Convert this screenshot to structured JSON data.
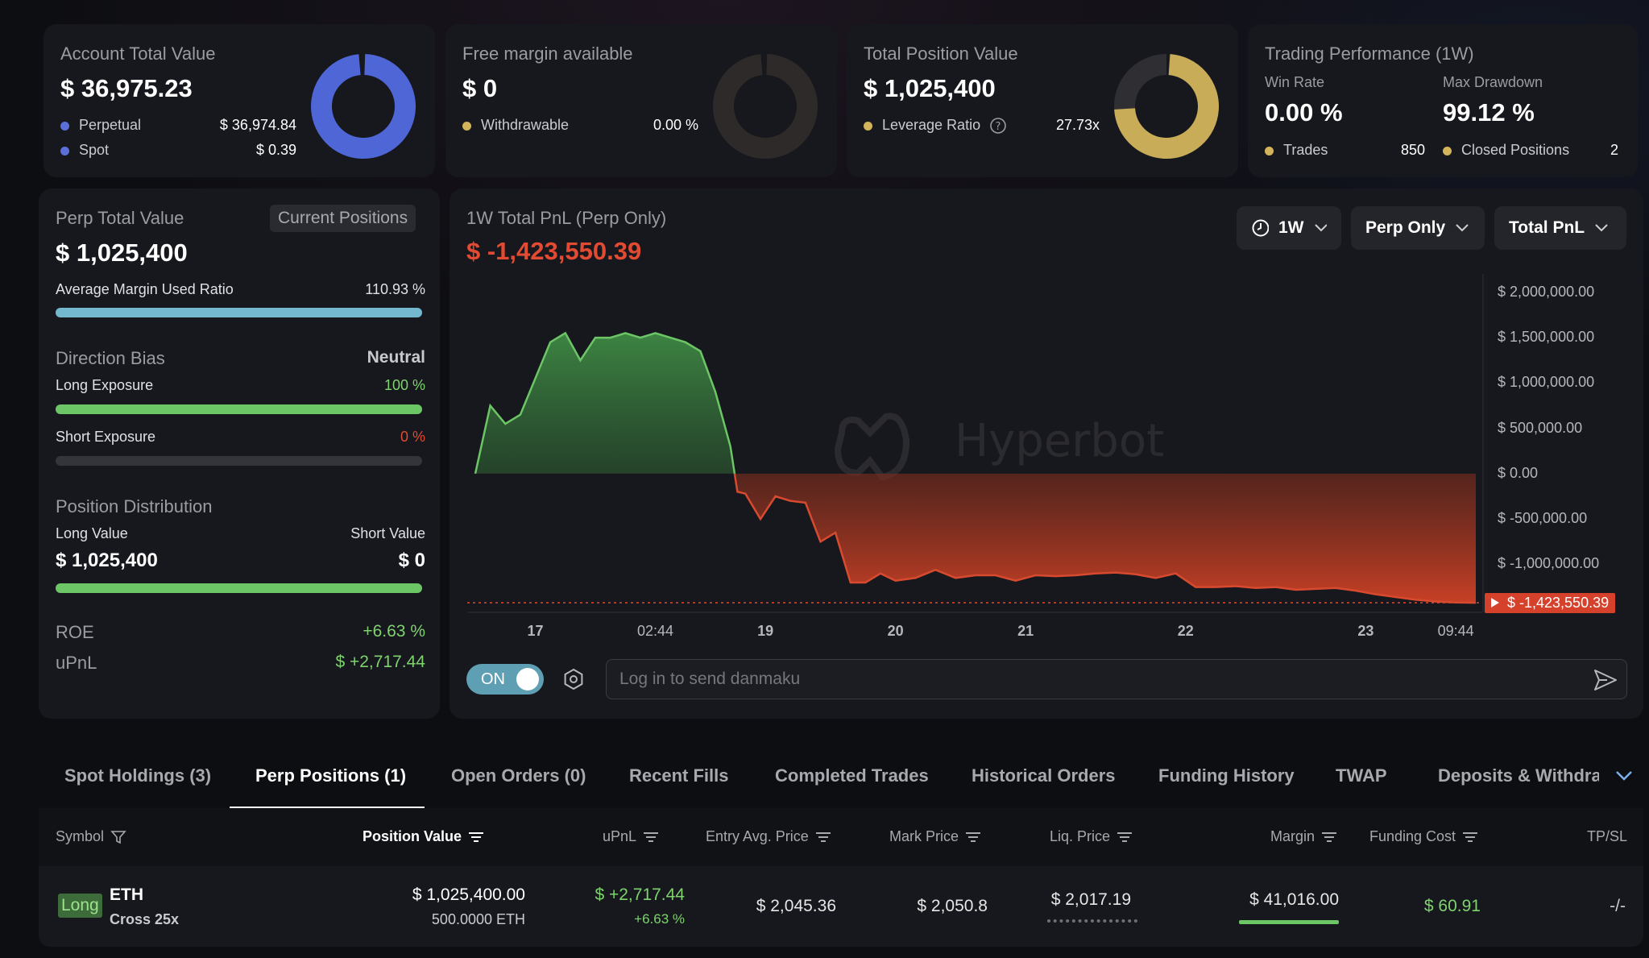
{
  "cards": {
    "account": {
      "title": "Account Total Value",
      "value": "$ 36,975.23",
      "perp_label": "Perpetual",
      "perp_value": "$ 36,974.84",
      "spot_label": "Spot",
      "spot_value": "$ 0.39"
    },
    "free_margin": {
      "title": "Free margin available",
      "value": "$ 0",
      "withdrawable_label": "Withdrawable",
      "withdrawable_value": "0.00 %"
    },
    "position": {
      "title": "Total Position Value",
      "value": "$ 1,025,400",
      "leverage_label": "Leverage Ratio",
      "leverage_value": "27.73x"
    },
    "performance": {
      "title": "Trading Performance (1W)",
      "win_rate_label": "Win Rate",
      "win_rate": "0.00 %",
      "max_drawdown_label": "Max Drawdown",
      "max_drawdown": "99.12 %",
      "trades_label": "Trades",
      "trades": "850",
      "closed_label": "Closed Positions",
      "closed": "2"
    }
  },
  "perp": {
    "title": "Perp Total Value",
    "badge": "Current Positions",
    "value": "$ 1,025,400",
    "margin_label": "Average Margin Used Ratio",
    "margin_value": "110.93 %",
    "margin_fill": 1.0,
    "bias_label": "Direction Bias",
    "bias_value": "Neutral",
    "long_label": "Long Exposure",
    "long_value": "100 %",
    "long_fill": 1.0,
    "short_label": "Short Exposure",
    "short_value": "0 %",
    "short_fill": 0.0,
    "dist_label": "Position Distribution",
    "long_value_label": "Long Value",
    "short_value_label": "Short Value",
    "long_amount": "$ 1,025,400",
    "short_amount": "$ 0",
    "dist_fill": 1.0,
    "roe_label": "ROE",
    "roe": "+6.63 %",
    "upnl_label": "uPnL",
    "upnl": "$ +2,717.44"
  },
  "chart_controls": {
    "timeframe": "1W",
    "market": "Perp Only",
    "metric": "Total PnL"
  },
  "watermark": "Hyperbot",
  "chart_data": {
    "type": "area",
    "title": "1W Total PnL (Perp Only)",
    "total_pnl": "$ -1,423,550.39",
    "last_value": -1423550.39,
    "last_value_label": "$ -1,423,550.39",
    "ylim": [
      -1600000,
      2300000
    ],
    "y_ticks": [
      2000000,
      1500000,
      1000000,
      500000,
      0,
      -500000,
      -1000000
    ],
    "y_tick_labels": [
      "$ 2,000,000.00",
      "$ 1,500,000.00",
      "$ 1,000,000.00",
      "$ 500,000.00",
      "$ 0.00",
      "$ -500,000.00",
      "$ -1,000,000.00"
    ],
    "x_tick_labels": [
      "17",
      "02:44",
      "19",
      "20",
      "21",
      "22",
      "23",
      "09:44"
    ],
    "x_tick_positions": [
      0.06,
      0.18,
      0.29,
      0.42,
      0.55,
      0.71,
      0.89,
      0.98
    ],
    "x": [
      0,
      0.015,
      0.03,
      0.045,
      0.06,
      0.075,
      0.09,
      0.105,
      0.12,
      0.135,
      0.15,
      0.165,
      0.18,
      0.195,
      0.21,
      0.225,
      0.24,
      0.255,
      0.262,
      0.27,
      0.285,
      0.3,
      0.315,
      0.33,
      0.345,
      0.36,
      0.375,
      0.39,
      0.405,
      0.42,
      0.44,
      0.46,
      0.48,
      0.5,
      0.52,
      0.54,
      0.56,
      0.58,
      0.6,
      0.62,
      0.64,
      0.66,
      0.68,
      0.7,
      0.72,
      0.74,
      0.76,
      0.78,
      0.8,
      0.82,
      0.84,
      0.86,
      0.88,
      0.9,
      0.92,
      0.94,
      0.96,
      0.98,
      1.0
    ],
    "y": [
      0,
      750000,
      550000,
      650000,
      1050000,
      1450000,
      1550000,
      1250000,
      1500000,
      1500000,
      1550000,
      1500000,
      1550000,
      1500000,
      1450000,
      1350000,
      900000,
      300000,
      -200000,
      -220000,
      -500000,
      -250000,
      -300000,
      -320000,
      -750000,
      -650000,
      -1200000,
      -1200000,
      -1100000,
      -1180000,
      -1150000,
      -1060000,
      -1150000,
      -1120000,
      -1120000,
      -1180000,
      -1120000,
      -1130000,
      -1120000,
      -1100000,
      -1090000,
      -1110000,
      -1150000,
      -1100000,
      -1250000,
      -1250000,
      -1240000,
      -1260000,
      -1250000,
      -1280000,
      -1270000,
      -1260000,
      -1290000,
      -1330000,
      -1360000,
      -1390000,
      -1410000,
      -1420000,
      -1423550
    ]
  },
  "danmaku": {
    "toggle_label": "ON",
    "placeholder": "Log in to send danmaku"
  },
  "tabs": [
    {
      "label": "Spot Holdings (3)",
      "active": false
    },
    {
      "label": "Perp Positions (1)",
      "active": true
    },
    {
      "label": "Open Orders (0)",
      "active": false
    },
    {
      "label": "Recent Fills",
      "active": false
    },
    {
      "label": "Completed Trades",
      "active": false
    },
    {
      "label": "Historical Orders",
      "active": false
    },
    {
      "label": "Funding History",
      "active": false
    },
    {
      "label": "TWAP",
      "active": false
    },
    {
      "label": "Deposits & Withdraw",
      "active": false
    }
  ],
  "table": {
    "headers": [
      "Symbol",
      "Position Value",
      "uPnL",
      "Entry Avg. Price",
      "Mark Price",
      "Liq. Price",
      "Margin",
      "Funding Cost",
      "TP/SL"
    ],
    "row": {
      "side": "Long",
      "symbol": "ETH",
      "mode": "Cross 25x",
      "position_value": "$ 1,025,400.00",
      "position_size": "500.0000 ETH",
      "upnl": "$ +2,717.44",
      "upnl_pct": "+6.63 %",
      "entry": "$ 2,045.36",
      "mark": "$ 2,050.8",
      "liq": "$ 2,017.19",
      "margin": "$ 41,016.00",
      "funding": "$ 60.91",
      "tpsl": "-/-"
    }
  }
}
